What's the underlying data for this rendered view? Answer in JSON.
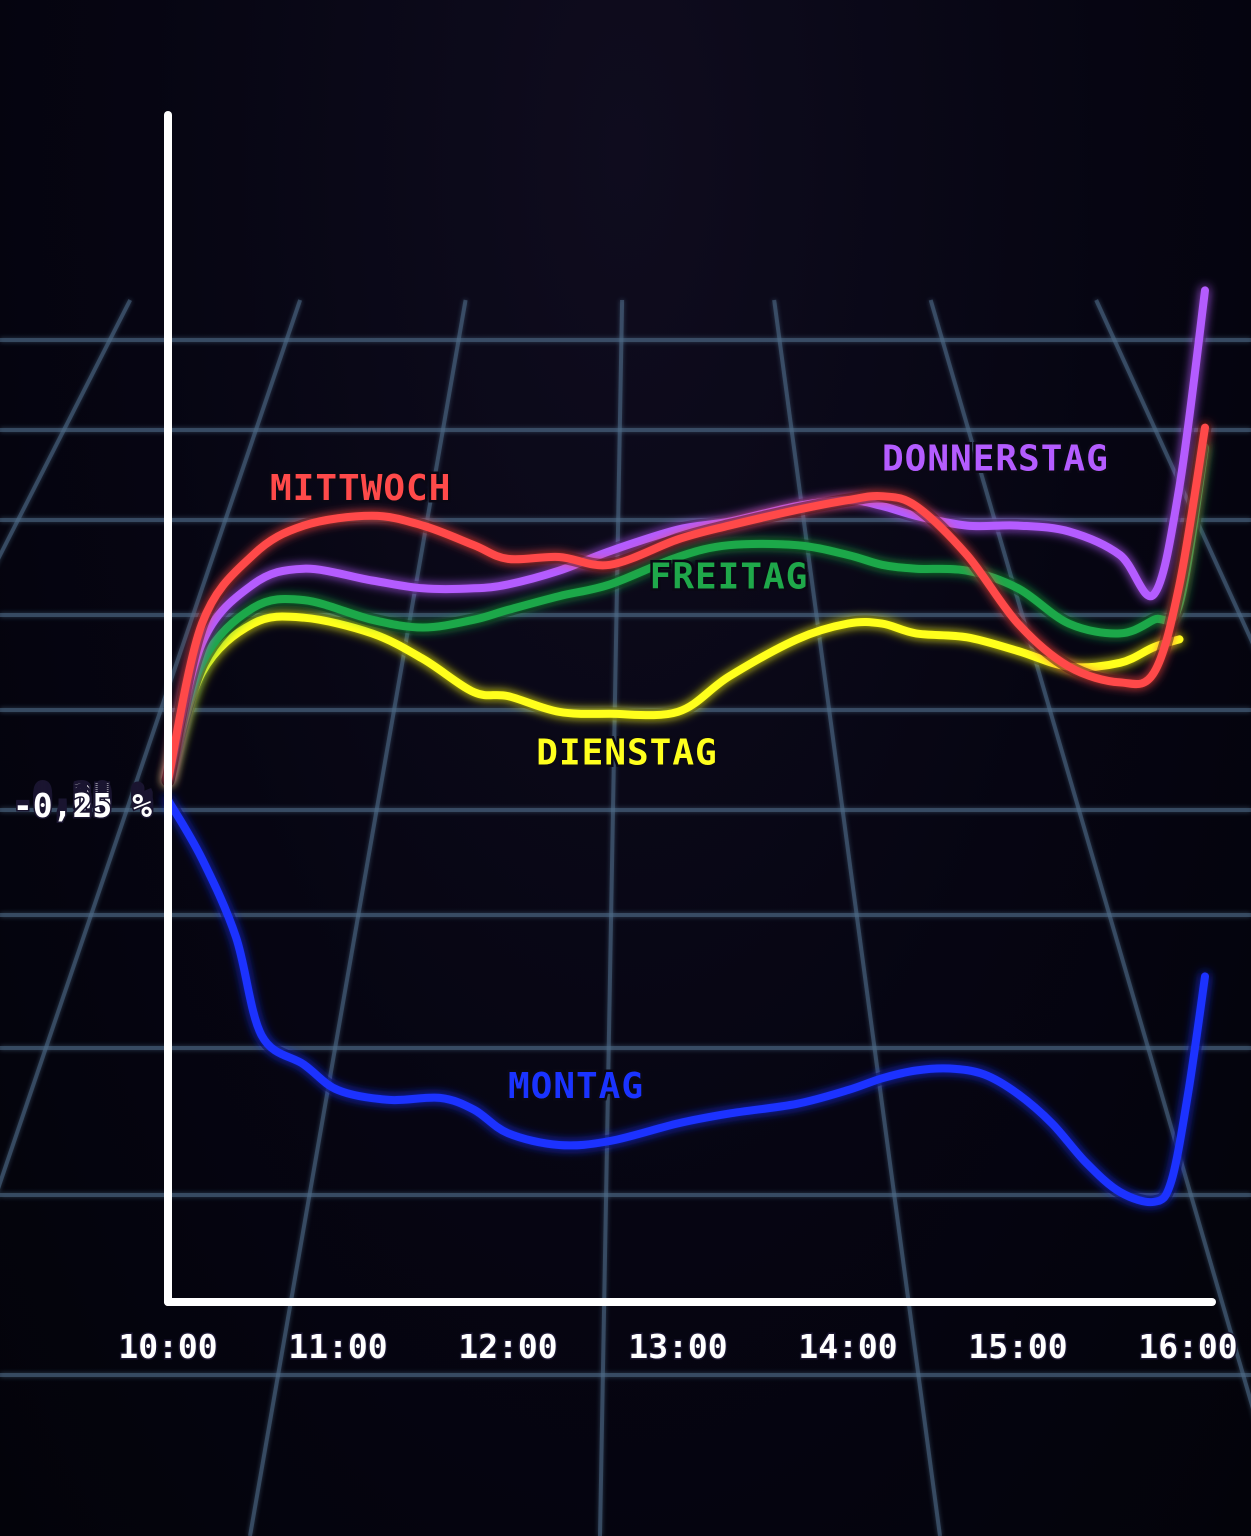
{
  "chart_data": {
    "type": "line",
    "title": "",
    "xlabel": "",
    "ylabel": "",
    "x_ticks": [
      "10:00",
      "11:00",
      "12:00",
      "13:00",
      "14:00",
      "15:00",
      "16:00"
    ],
    "y_ticks": [
      "0,30 %",
      "0,25 %",
      "0,20 %",
      "0,15 %",
      "0,10 %",
      "0,05 %",
      "0,00 %",
      "-0,05 %",
      "-0,10 %",
      "-0,15 %",
      "-0,20 %",
      "-0,25 %"
    ],
    "ylim": [
      -0.25,
      0.3
    ],
    "xlim": [
      10.0,
      16.2
    ],
    "grid": true,
    "series": [
      {
        "name": "MITTWOCH",
        "color": "#ff4a4a",
        "x": [
          10.0,
          10.2,
          10.5,
          10.8,
          11.2,
          11.5,
          11.8,
          12.0,
          12.3,
          12.6,
          13.0,
          13.3,
          13.7,
          14.0,
          14.2,
          14.4,
          14.7,
          15.0,
          15.3,
          15.6,
          15.8,
          15.95,
          16.1
        ],
        "y": [
          0.01,
          0.09,
          0.125,
          0.14,
          0.145,
          0.14,
          0.13,
          0.123,
          0.124,
          0.12,
          0.133,
          0.14,
          0.148,
          0.153,
          0.155,
          0.15,
          0.125,
          0.09,
          0.068,
          0.06,
          0.065,
          0.11,
          0.19
        ]
      },
      {
        "name": "DONNERSTAG",
        "color": "#b45cff",
        "x": [
          10.0,
          10.2,
          10.5,
          10.8,
          11.2,
          11.5,
          11.8,
          12.0,
          12.3,
          12.6,
          13.0,
          13.3,
          13.7,
          14.0,
          14.2,
          14.4,
          14.7,
          15.0,
          15.3,
          15.6,
          15.8,
          15.95,
          16.1
        ],
        "y": [
          0.01,
          0.08,
          0.11,
          0.118,
          0.112,
          0.108,
          0.108,
          0.11,
          0.117,
          0.127,
          0.138,
          0.142,
          0.15,
          0.153,
          0.15,
          0.145,
          0.14,
          0.14,
          0.137,
          0.125,
          0.105,
          0.16,
          0.26
        ]
      },
      {
        "name": "FREITAG",
        "color": "#1fa84a",
        "x": [
          10.0,
          10.2,
          10.5,
          10.8,
          11.2,
          11.5,
          11.8,
          12.0,
          12.3,
          12.6,
          13.0,
          13.3,
          13.7,
          14.0,
          14.2,
          14.4,
          14.7,
          15.0,
          15.3,
          15.6,
          15.8,
          15.95,
          16.1
        ],
        "y": [
          0.01,
          0.07,
          0.098,
          0.102,
          0.092,
          0.088,
          0.092,
          0.097,
          0.104,
          0.11,
          0.124,
          0.13,
          0.13,
          0.125,
          0.12,
          0.118,
          0.117,
          0.108,
          0.09,
          0.085,
          0.092,
          0.1,
          0.18
        ]
      },
      {
        "name": "DIENSTAG",
        "color": "#ffff1e",
        "x": [
          10.0,
          10.2,
          10.5,
          10.8,
          11.2,
          11.5,
          11.8,
          12.0,
          12.3,
          12.6,
          13.0,
          13.3,
          13.7,
          14.0,
          14.2,
          14.4,
          14.7,
          15.0,
          15.3,
          15.6,
          15.8,
          15.95
        ],
        "y": [
          0.01,
          0.065,
          0.09,
          0.093,
          0.085,
          0.072,
          0.055,
          0.053,
          0.045,
          0.044,
          0.045,
          0.063,
          0.082,
          0.09,
          0.09,
          0.085,
          0.083,
          0.076,
          0.068,
          0.07,
          0.078,
          0.082
        ]
      },
      {
        "name": "MONTAG",
        "color": "#1a33ff",
        "x": [
          10.0,
          10.2,
          10.4,
          10.55,
          10.8,
          11.0,
          11.3,
          11.6,
          11.8,
          12.0,
          12.3,
          12.6,
          13.0,
          13.3,
          13.7,
          14.0,
          14.2,
          14.4,
          14.6,
          14.8,
          15.0,
          15.2,
          15.4,
          15.6,
          15.8,
          15.9,
          16.0,
          16.1
        ],
        "y": [
          0.0,
          -0.03,
          -0.07,
          -0.12,
          -0.135,
          -0.148,
          -0.153,
          -0.152,
          -0.158,
          -0.17,
          -0.176,
          -0.174,
          -0.165,
          -0.16,
          -0.155,
          -0.148,
          -0.142,
          -0.138,
          -0.137,
          -0.14,
          -0.15,
          -0.165,
          -0.185,
          -0.2,
          -0.205,
          -0.195,
          -0.15,
          -0.09
        ]
      }
    ]
  }
}
